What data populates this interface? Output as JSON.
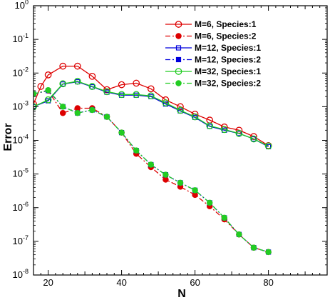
{
  "chart_data": {
    "type": "line",
    "title": "",
    "xlabel": "N",
    "ylabel": "Error",
    "xlim": [
      16,
      96
    ],
    "ylim": [
      1e-08,
      1
    ],
    "yscale": "log",
    "x_ticks": [
      20,
      40,
      60,
      80
    ],
    "y_ticks": [
      {
        "exp": -8,
        "label_base": "10",
        "label_exp": "-8"
      },
      {
        "exp": -7,
        "label_base": "10",
        "label_exp": "-7"
      },
      {
        "exp": -6,
        "label_base": "10",
        "label_exp": "-6"
      },
      {
        "exp": -5,
        "label_base": "10",
        "label_exp": "-5"
      },
      {
        "exp": -4,
        "label_base": "10",
        "label_exp": "-4"
      },
      {
        "exp": -3,
        "label_base": "10",
        "label_exp": "-3"
      },
      {
        "exp": -2,
        "label_base": "10",
        "label_exp": "-2"
      },
      {
        "exp": -1,
        "label_base": "10",
        "label_exp": "-1"
      },
      {
        "exp": 0,
        "label_base": "10",
        "label_exp": "0"
      }
    ],
    "grid": false,
    "legend_position": "top-right",
    "series": [
      {
        "name": "M=6, Species:1",
        "color": "#dd0000",
        "dash": "solid",
        "marker": "circle-open",
        "x": [
          16,
          18,
          20,
          24,
          28,
          32,
          36,
          40,
          44,
          48,
          52,
          56,
          60,
          64,
          68,
          72,
          76,
          80
        ],
        "y": [
          0.0012,
          0.004,
          0.0088,
          0.016,
          0.016,
          0.008,
          0.0032,
          0.0045,
          0.005,
          0.0034,
          0.0016,
          0.001,
          0.0006,
          0.0004,
          0.00025,
          0.0002,
          0.00013,
          7e-05
        ]
      },
      {
        "name": "M=6, Species:2",
        "color": "#dd0000",
        "dash": "dashdot",
        "marker": "circle-filled",
        "x": [
          16,
          20,
          24,
          28,
          32,
          36,
          40,
          44,
          48,
          52,
          56,
          60,
          64,
          68,
          72,
          76,
          80
        ],
        "y": [
          0.0024,
          0.003,
          0.00065,
          0.0009,
          0.0009,
          0.0005,
          0.00017,
          4e-05,
          1.6e-05,
          6.8e-06,
          4.2e-06,
          2.4e-06,
          1.1e-06,
          4.5e-07,
          1.6e-07,
          6.5e-08,
          4.8e-08
        ]
      },
      {
        "name": "M=12, Species:1",
        "color": "#0000dd",
        "dash": "solid",
        "marker": "square-open",
        "x": [
          16,
          20,
          24,
          28,
          32,
          36,
          40,
          44,
          48,
          52,
          56,
          60,
          64,
          68,
          72,
          76,
          80
        ],
        "y": [
          0.001,
          0.0015,
          0.0047,
          0.0055,
          0.0039,
          0.0027,
          0.0022,
          0.0022,
          0.002,
          0.0012,
          0.00075,
          0.00048,
          0.00026,
          0.0002,
          0.00016,
          0.00011,
          6.5e-05
        ]
      },
      {
        "name": "M=12, Species:2",
        "color": "#0000dd",
        "dash": "dashdot",
        "marker": "square-filled",
        "x": [
          16,
          20,
          24,
          28,
          32,
          36,
          40,
          44,
          48,
          52,
          56,
          60,
          64,
          68,
          72,
          76,
          80
        ],
        "y": [
          0.0024,
          0.003,
          0.001,
          0.00065,
          0.0008,
          0.0005,
          0.00017,
          5e-05,
          1.9e-05,
          9.5e-06,
          5.5e-06,
          3.3e-06,
          1.4e-06,
          5e-07,
          1.6e-07,
          6.5e-08,
          4.8e-08
        ]
      },
      {
        "name": "M=32, Species:1",
        "color": "#22cc22",
        "dash": "solid",
        "marker": "circle-open",
        "x": [
          16,
          20,
          24,
          28,
          32,
          36,
          40,
          44,
          48,
          52,
          56,
          60,
          64,
          68,
          72,
          76,
          80
        ],
        "y": [
          0.001,
          0.0016,
          0.0048,
          0.0057,
          0.004,
          0.0028,
          0.0023,
          0.0023,
          0.0021,
          0.0013,
          0.00078,
          0.0005,
          0.00027,
          0.00021,
          0.00016,
          0.00011,
          6.8e-05
        ]
      },
      {
        "name": "M=32, Species:2",
        "color": "#22cc22",
        "dash": "dashdot",
        "marker": "circle-filled",
        "x": [
          16,
          20,
          24,
          28,
          32,
          36,
          40,
          44,
          48,
          52,
          56,
          60,
          64,
          68,
          72,
          76,
          80
        ],
        "y": [
          0.0024,
          0.0031,
          0.001,
          0.00065,
          0.0008,
          0.0005,
          0.00017,
          5e-05,
          1.9e-05,
          9.5e-06,
          5.5e-06,
          3.3e-06,
          1.4e-06,
          5e-07,
          1.6e-07,
          6.5e-08,
          4.8e-08
        ]
      }
    ]
  }
}
